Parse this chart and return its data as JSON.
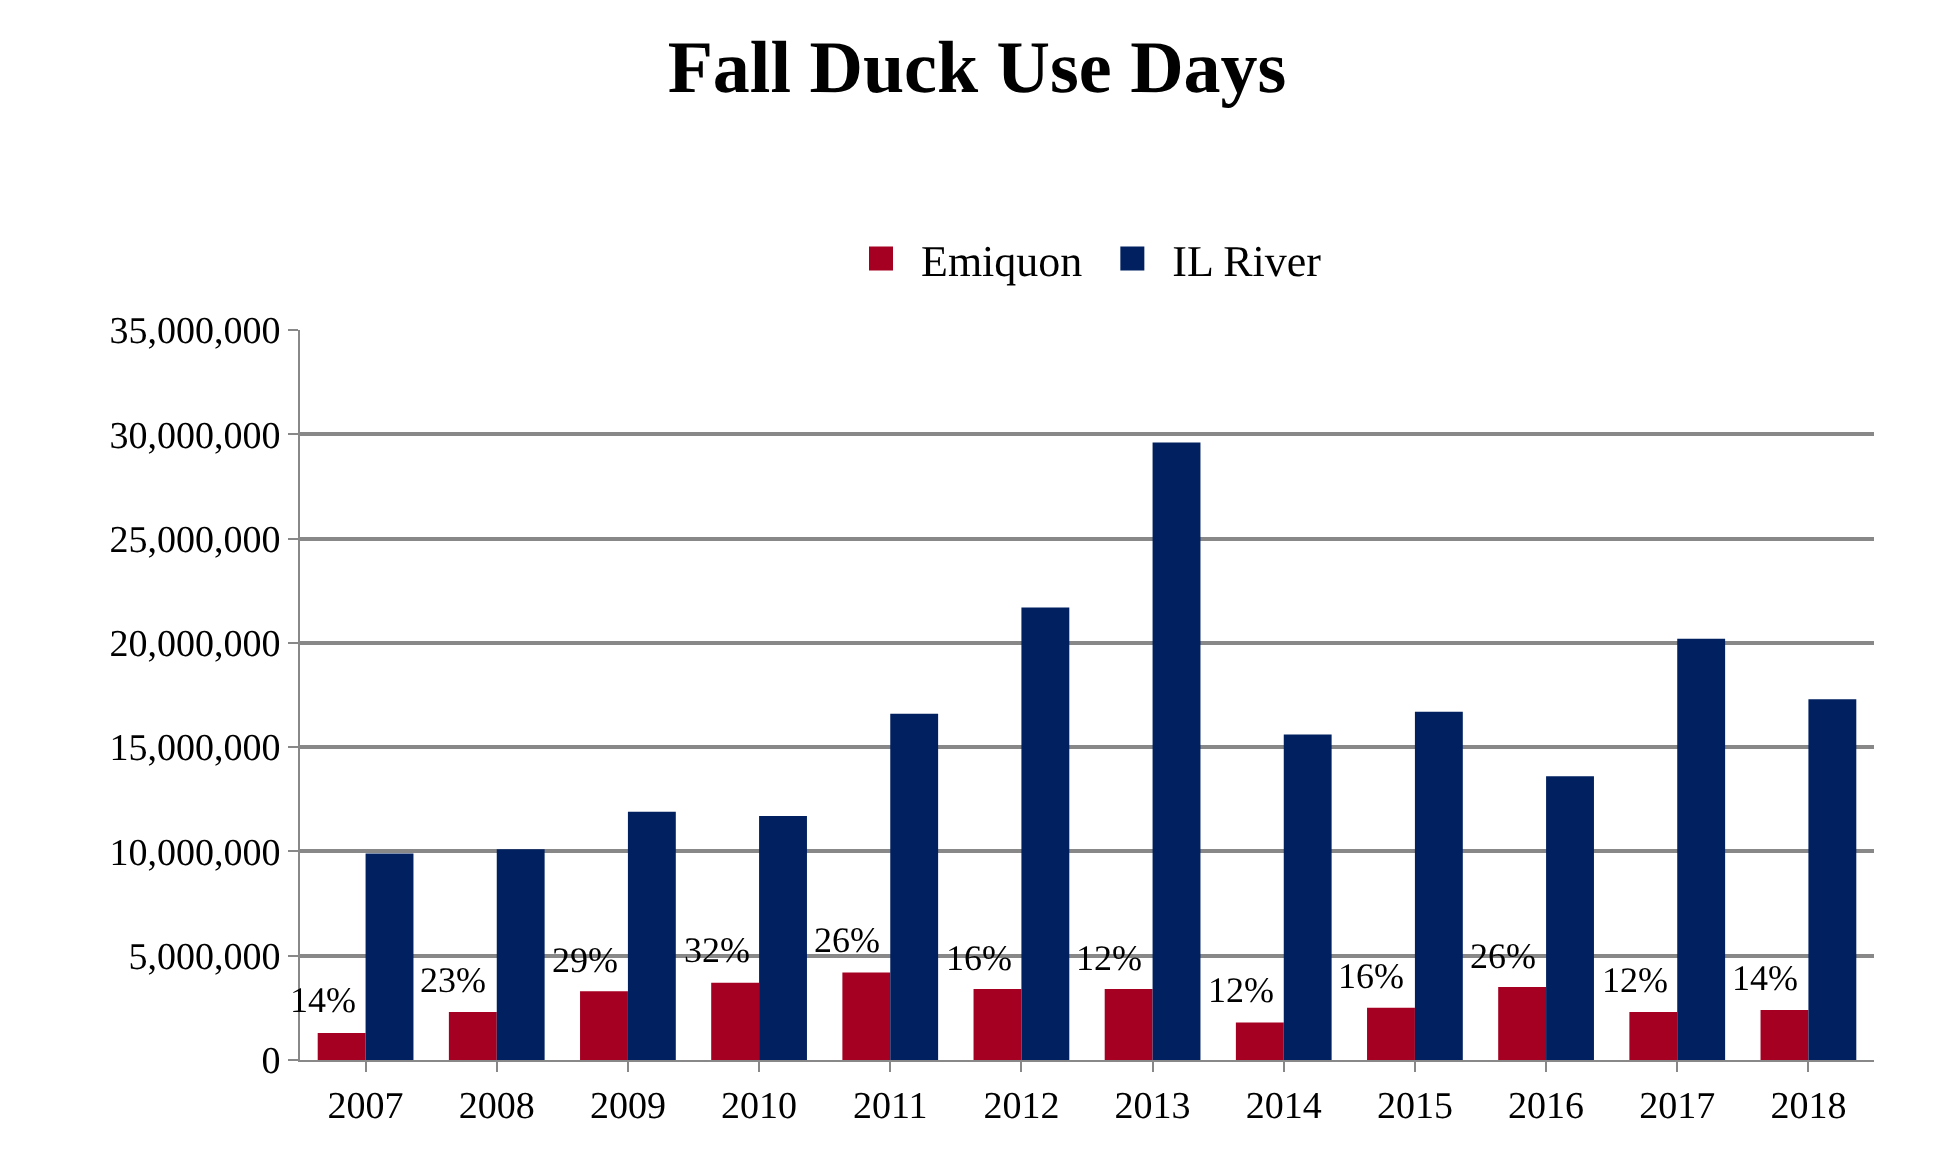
{
  "chart_data": {
    "type": "bar",
    "title": "Fall Duck Use Days",
    "categories": [
      "2007",
      "2008",
      "2009",
      "2010",
      "2011",
      "2012",
      "2013",
      "2014",
      "2015",
      "2016",
      "2017",
      "2018"
    ],
    "series": [
      {
        "name": "Emiquon",
        "color": "#a50021",
        "values": [
          1300000,
          2300000,
          3300000,
          3700000,
          4200000,
          3400000,
          3400000,
          1800000,
          2500000,
          3500000,
          2300000,
          2400000
        ]
      },
      {
        "name": "IL River",
        "color": "#002060",
        "values": [
          9900000,
          10100000,
          11900000,
          11700000,
          16600000,
          21700000,
          29600000,
          15600000,
          16700000,
          13600000,
          20200000,
          17300000
        ]
      }
    ],
    "annotations": [
      {
        "text": "14%",
        "x": "2007",
        "y": 1300000
      },
      {
        "text": "23%",
        "x": "2008",
        "y": 2300000
      },
      {
        "text": "29%",
        "x": "2009",
        "y": 3300000
      },
      {
        "text": "32%",
        "x": "2010",
        "y": 3700000
      },
      {
        "text": "26%",
        "x": "2011",
        "y": 4200000
      },
      {
        "text": "16%",
        "x": "2012",
        "y": 3400000
      },
      {
        "text": "12%",
        "x": "2013",
        "y": 3400000
      },
      {
        "text": "12%",
        "x": "2014",
        "y": 1800000
      },
      {
        "text": "16%",
        "x": "2015",
        "y": 2500000
      },
      {
        "text": "26%",
        "x": "2016",
        "y": 3500000
      },
      {
        "text": "12%",
        "x": "2017",
        "y": 2300000
      },
      {
        "text": "14%",
        "x": "2018",
        "y": 2400000
      }
    ],
    "ylim": [
      0,
      35000000
    ],
    "yticks": [
      {
        "value": 0,
        "label": "0"
      },
      {
        "value": 5000000,
        "label": "5,000,000"
      },
      {
        "value": 10000000,
        "label": "10,000,000"
      },
      {
        "value": 15000000,
        "label": "15,000,000"
      },
      {
        "value": 20000000,
        "label": "20,000,000"
      },
      {
        "value": 25000000,
        "label": "25,000,000"
      },
      {
        "value": 30000000,
        "label": "30,000,000"
      },
      {
        "value": 35000000,
        "label": "35,000,000"
      }
    ],
    "grid": "y",
    "legend": "top"
  }
}
